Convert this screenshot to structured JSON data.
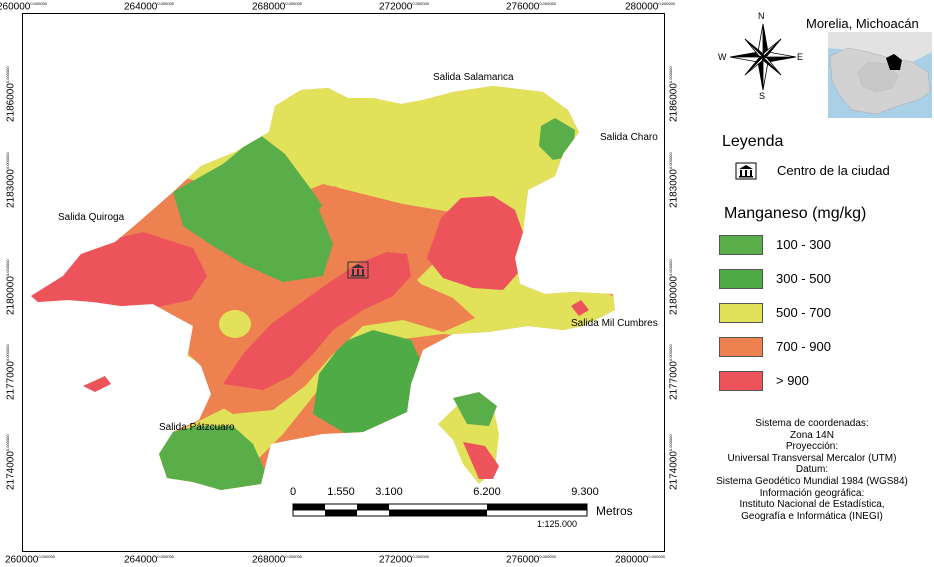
{
  "map": {
    "x_ticks": [
      "260000",
      "264000",
      "268000",
      "272000",
      "276000",
      "280000"
    ],
    "y_ticks": [
      "2186000",
      "2183000",
      "2180000",
      "2177000",
      "2174000"
    ],
    "tick_superscript": "0.000000",
    "places": {
      "salamanca": "Salida Salamanca",
      "charo": "Salida Charo",
      "quiroga": "Salida Quiroga",
      "mil_cumbres": "Salida Mil Cumbres",
      "patzcuaro": "Salida Pátzcuaro"
    }
  },
  "inset": {
    "title": "Morelia, Michoacán"
  },
  "compass": {
    "n": "N",
    "s": "S",
    "e": "E",
    "w": "W"
  },
  "legend": {
    "title": "Leyenda",
    "city_center": "Centro de la ciudad",
    "variable_title": "Manganeso (mg/kg)",
    "classes": [
      {
        "label": "100 - 300",
        "color": "#5aae4a"
      },
      {
        "label": "300 - 500",
        "color": "#4eab45"
      },
      {
        "label": "500 - 700",
        "color": "#e2e25a"
      },
      {
        "label": "700 - 900",
        "color": "#ee8150"
      },
      {
        "label": "> 900",
        "color": "#ec535a"
      }
    ]
  },
  "scalebar": {
    "labels": [
      "0",
      "1.550",
      "3.100",
      "6.200",
      "9.300"
    ],
    "unit": "Metros",
    "ratio": "1:125.000"
  },
  "info": {
    "lines": [
      "Sistema de coordenadas:",
      "Zona 14N",
      "Proyección:",
      "Universal Transversal Mercalor (UTM)",
      "Datum:",
      "Sistema Geodético Mundial 1984 (WGS84)",
      "Información geográfica:",
      "Instituto Nacional de Estadística,",
      "Geografía e Informática (INEGI)"
    ]
  }
}
